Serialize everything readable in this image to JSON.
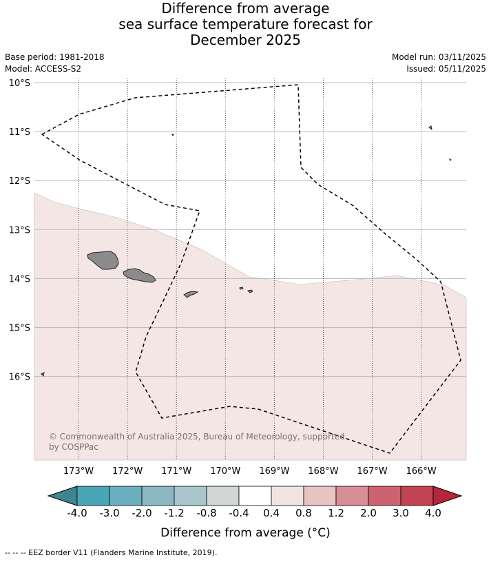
{
  "title": {
    "line1": "Difference from average",
    "line2": "sea surface temperature forecast for",
    "line3": "December 2025"
  },
  "meta": {
    "base_period": "Base period: 1981-2018",
    "model": "Model: ACCESS-S2",
    "model_run": "Model run: 03/11/2025",
    "issued": "Issued: 05/11/2025"
  },
  "map": {
    "lon_range": [
      -173.9,
      -165.1
    ],
    "lat_range": [
      -17.7,
      -10.0
    ],
    "lat_ticks": [
      "10°S",
      "11°S",
      "12°S",
      "13°S",
      "14°S",
      "15°S",
      "16°S"
    ],
    "lat_values": [
      -10,
      -11,
      -12,
      -13,
      -14,
      -15,
      -16
    ],
    "lon_ticks": [
      "173°W",
      "172°W",
      "171°W",
      "170°W",
      "169°W",
      "168°W",
      "167°W",
      "166°W"
    ],
    "lon_values": [
      -173,
      -172,
      -171,
      -170,
      -169,
      -168,
      -167,
      -166
    ],
    "anomaly_region_color": "#f3e6e5",
    "land_color": "#8c8a8a",
    "copyright": "© Commonwealth of Australia 2025, Bureau of Meteorology, supported by COSPPac"
  },
  "colorbar": {
    "colors": [
      "#3e8590",
      "#4aa5b6",
      "#6baebf",
      "#8bb8c2",
      "#a8c6cb",
      "#d2d5d5",
      "#ffffff",
      "#f3e4e4",
      "#e8c3c1",
      "#d98d94",
      "#cd6270",
      "#c24352",
      "#b5263e"
    ],
    "labels": [
      "-4.0",
      "-3.0",
      "-2.0",
      "-1.2",
      "-0.8",
      "-0.4",
      "0.4",
      "0.8",
      "1.2",
      "2.0",
      "3.0",
      "4.0"
    ],
    "title": "Difference from average (°C)"
  },
  "footer": "--  --  -- EEZ border V11 (Flanders Marine Institute, 2019)."
}
